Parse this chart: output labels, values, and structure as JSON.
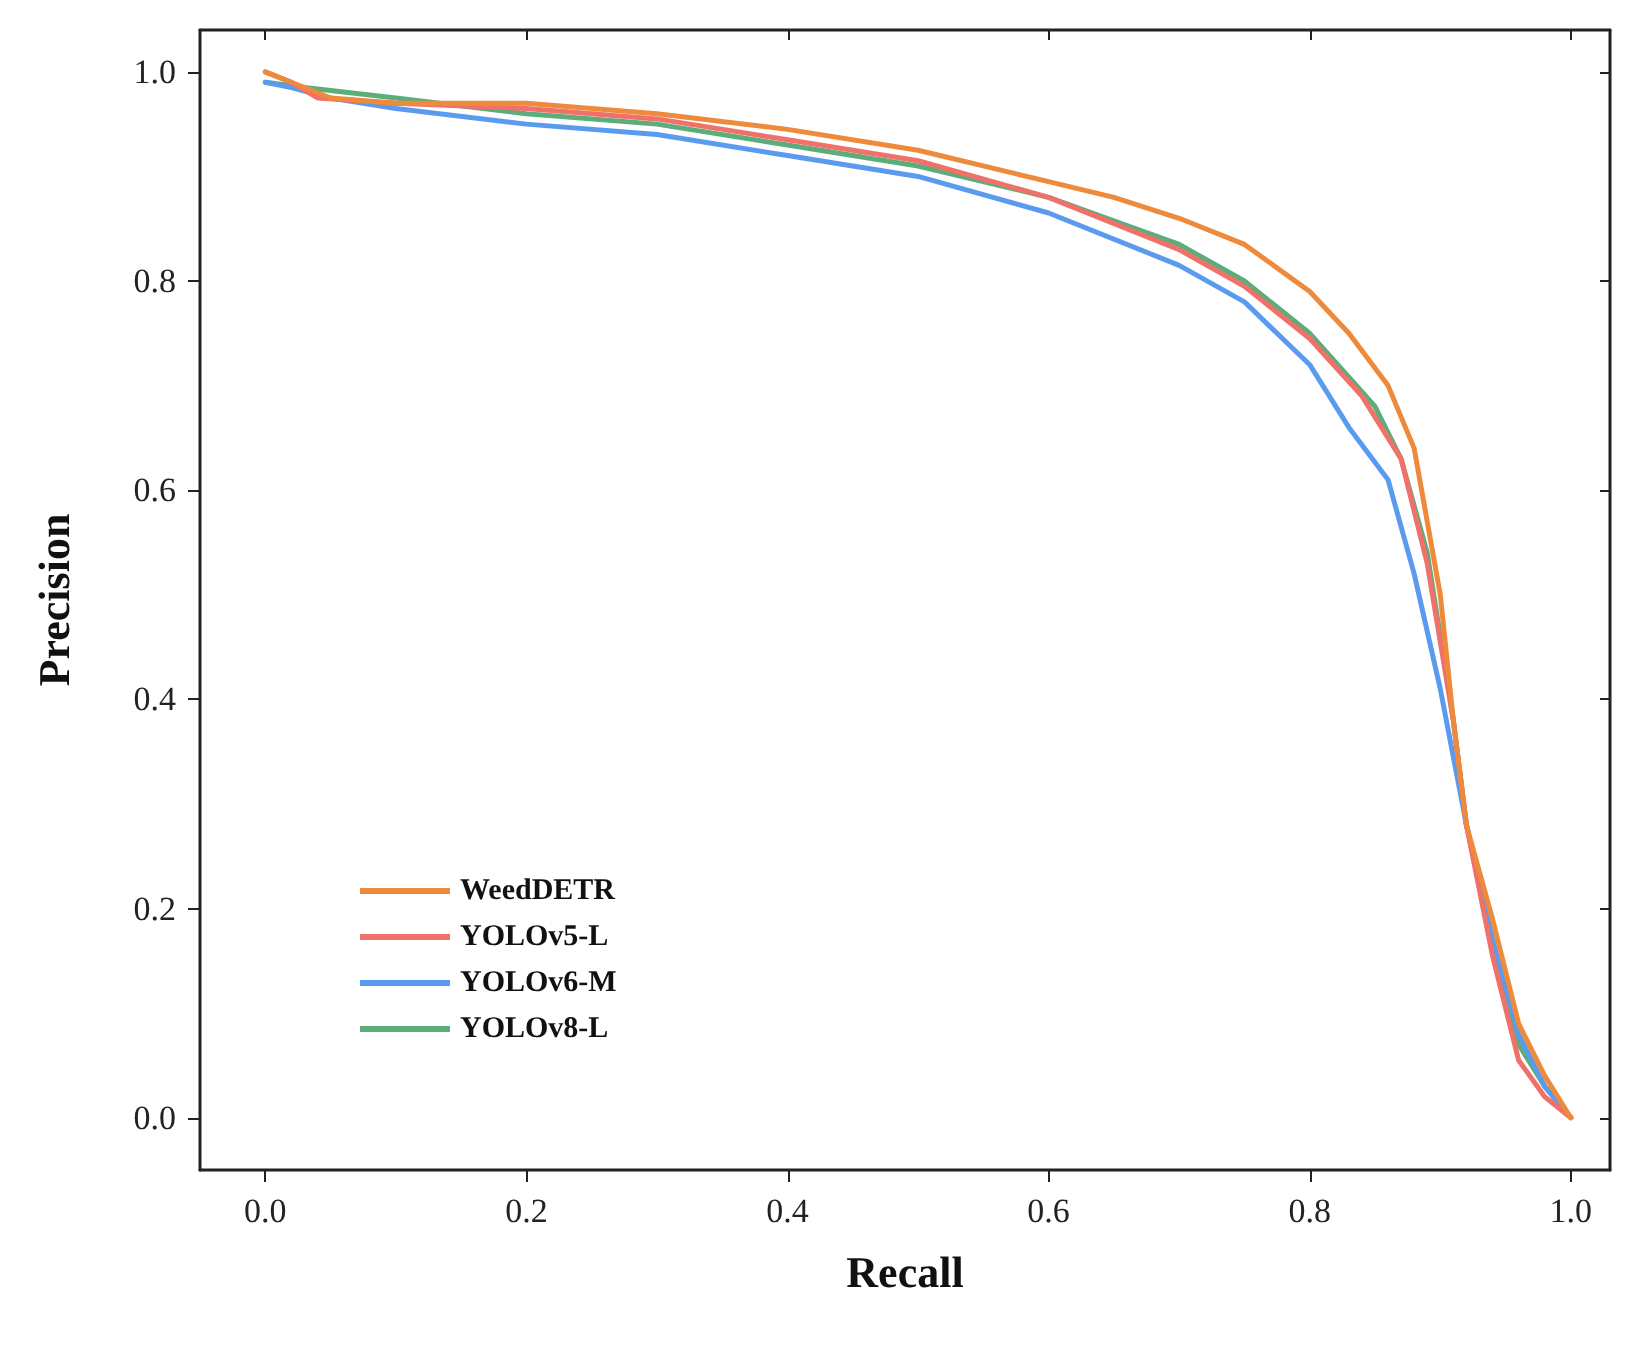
{
  "chart_data": {
    "type": "line",
    "xlabel": "Recall",
    "ylabel": "Precision",
    "xlim": [
      -0.05,
      1.03
    ],
    "ylim": [
      -0.05,
      1.04
    ],
    "xticks": [
      {
        "value": 0,
        "label": "0.0"
      },
      0.2,
      0.4,
      0.6,
      0.8,
      {
        "value": 1,
        "label": "1.0"
      }
    ],
    "yticks": [
      {
        "value": 0,
        "label": "0.0"
      },
      0.2,
      0.4,
      0.6,
      0.8,
      {
        "value": 1,
        "label": "1.0"
      }
    ],
    "grid": false,
    "legend": "bottom left",
    "marker": "none",
    "line_style": "solid",
    "series": [
      {
        "name": "WeedDETR",
        "color": "#ee8a3c",
        "x": [
          0,
          0.02,
          0.05,
          0.1,
          0.2,
          0.3,
          0.4,
          0.5,
          0.6,
          0.65,
          0.7,
          0.75,
          0.8,
          0.83,
          0.86,
          0.88,
          0.9,
          0.91,
          0.92,
          0.94,
          0.96,
          0.98,
          1.0
        ],
        "values": [
          1.0,
          0.99,
          0.975,
          0.97,
          0.97,
          0.96,
          0.945,
          0.925,
          0.895,
          0.88,
          0.86,
          0.835,
          0.79,
          0.75,
          0.7,
          0.64,
          0.5,
          0.38,
          0.28,
          0.19,
          0.09,
          0.04,
          0.0
        ]
      },
      {
        "name": "YOLOv5-L",
        "color": "#f0706a",
        "x": [
          0,
          0.02,
          0.04,
          0.1,
          0.2,
          0.3,
          0.4,
          0.5,
          0.6,
          0.7,
          0.75,
          0.8,
          0.84,
          0.87,
          0.89,
          0.91,
          0.92,
          0.94,
          0.96,
          0.98,
          1.0
        ],
        "values": [
          1.0,
          0.99,
          0.975,
          0.97,
          0.965,
          0.955,
          0.935,
          0.915,
          0.88,
          0.83,
          0.795,
          0.745,
          0.69,
          0.63,
          0.53,
          0.38,
          0.28,
          0.155,
          0.055,
          0.02,
          0.0
        ]
      },
      {
        "name": "YOLOv6-M",
        "color": "#5b9bef",
        "x": [
          0,
          0.02,
          0.05,
          0.1,
          0.2,
          0.3,
          0.4,
          0.5,
          0.6,
          0.7,
          0.75,
          0.8,
          0.83,
          0.86,
          0.88,
          0.9,
          0.92,
          0.94,
          0.96,
          0.98,
          1.0
        ],
        "values": [
          0.99,
          0.985,
          0.975,
          0.965,
          0.95,
          0.94,
          0.92,
          0.9,
          0.865,
          0.815,
          0.78,
          0.72,
          0.66,
          0.61,
          0.52,
          0.41,
          0.28,
          0.17,
          0.08,
          0.03,
          0.0
        ]
      },
      {
        "name": "YOLOv8-L",
        "color": "#5cad7a",
        "x": [
          0,
          0.03,
          0.1,
          0.2,
          0.3,
          0.4,
          0.5,
          0.6,
          0.7,
          0.75,
          0.8,
          0.85,
          0.87,
          0.89,
          0.91,
          0.92,
          0.94,
          0.96,
          0.98,
          1.0
        ],
        "values": [
          0.99,
          0.985,
          0.975,
          0.96,
          0.95,
          0.93,
          0.91,
          0.88,
          0.835,
          0.8,
          0.75,
          0.68,
          0.63,
          0.54,
          0.38,
          0.28,
          0.17,
          0.07,
          0.03,
          0.0
        ]
      }
    ]
  }
}
